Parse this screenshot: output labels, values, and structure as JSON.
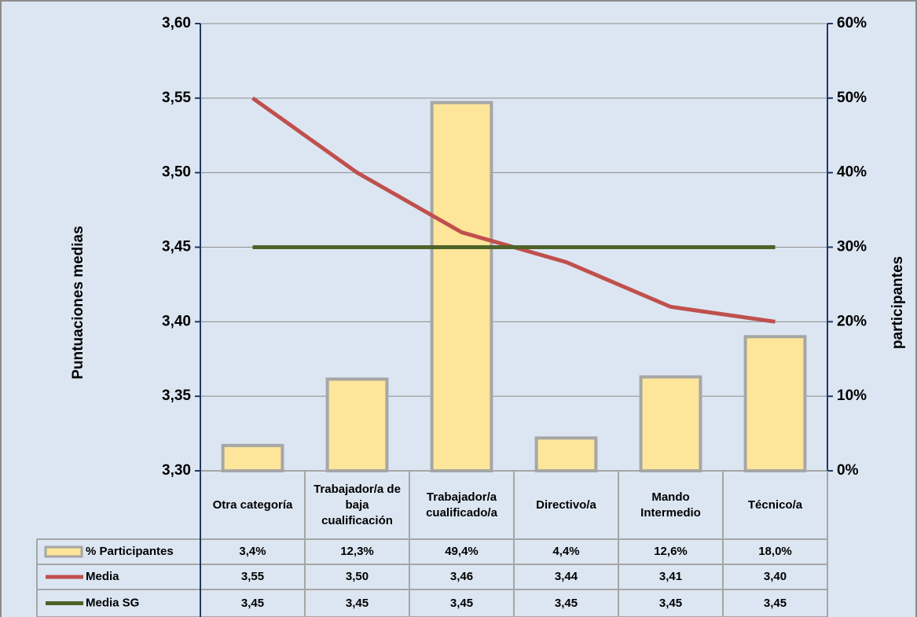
{
  "chart_data": {
    "type": "bar",
    "categories": [
      "Otra categoría",
      "Trabajador/a de baja cualificación",
      "Trabajador/a cualificado/a",
      "Directivo/a",
      "Mando Intermedio",
      "Técnico/a"
    ],
    "series": [
      {
        "name": "% Participantes",
        "type": "bar",
        "axis": "y2",
        "color": "#fde59a",
        "values": [
          3.4,
          12.3,
          49.4,
          4.4,
          12.6,
          18.0
        ],
        "value_labels": [
          "3,4%",
          "12,3%",
          "49,4%",
          "4,4%",
          "12,6%",
          "18,0%"
        ]
      },
      {
        "name": "Media",
        "type": "line",
        "color": "#c0504d",
        "values": [
          3.55,
          3.5,
          3.46,
          3.44,
          3.41,
          3.4
        ],
        "value_labels": [
          "3,55",
          "3,50",
          "3,46",
          "3,44",
          "3,41",
          "3,40"
        ]
      },
      {
        "name": "Media SG",
        "type": "line",
        "color": "#4f6228",
        "values": [
          3.45,
          3.45,
          3.45,
          3.45,
          3.45,
          3.45
        ],
        "value_labels": [
          "3,45",
          "3,45",
          "3,45",
          "3,45",
          "3,45",
          "3,45"
        ]
      }
    ],
    "ylabel": "Puntuaciones medias",
    "y2label": "participantes",
    "ylim": [
      3.3,
      3.6
    ],
    "yticks": [
      {
        "value": 3.3,
        "label": "3,30"
      },
      {
        "value": 3.35,
        "label": "3,35"
      },
      {
        "value": 3.4,
        "label": "3,40"
      },
      {
        "value": 3.45,
        "label": "3,45"
      },
      {
        "value": 3.5,
        "label": "3,50"
      },
      {
        "value": 3.55,
        "label": "3,55"
      },
      {
        "value": 3.6,
        "label": "3,60"
      }
    ],
    "y2lim": [
      0,
      60
    ],
    "y2ticks": [
      {
        "value": 0,
        "label": "0%"
      },
      {
        "value": 10,
        "label": "10%"
      },
      {
        "value": 20,
        "label": "20%"
      },
      {
        "value": 30,
        "label": "30%"
      },
      {
        "value": 40,
        "label": "40%"
      },
      {
        "value": 50,
        "label": "50%"
      },
      {
        "value": 60,
        "label": "60%"
      }
    ],
    "grid": true
  }
}
